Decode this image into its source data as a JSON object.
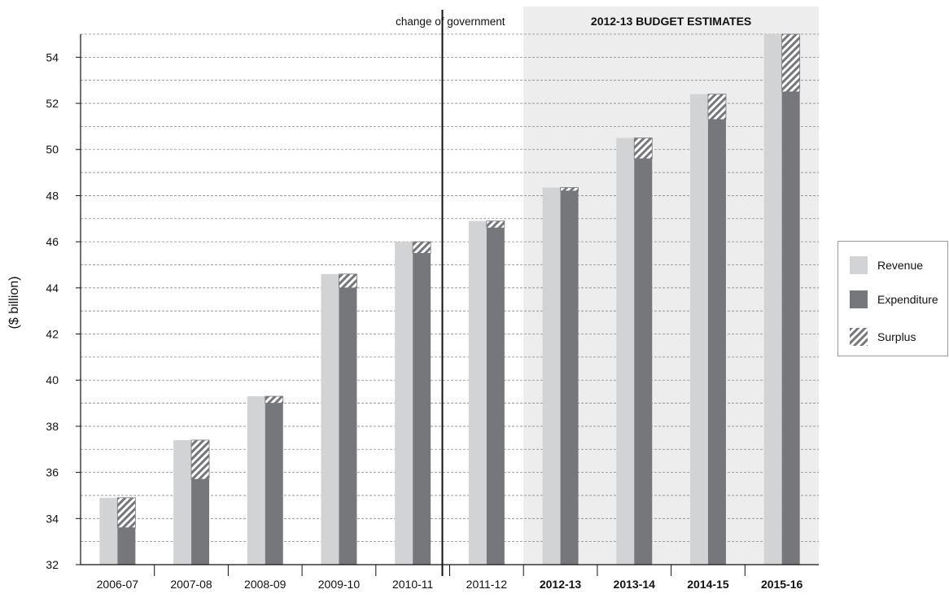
{
  "chart_data": {
    "type": "bar",
    "ylabel": "($ billion)",
    "ylim": [
      32,
      55
    ],
    "yticks": [
      32,
      34,
      36,
      38,
      40,
      42,
      44,
      46,
      48,
      50,
      52,
      54
    ],
    "grid": "dashed horizontal lines every 1",
    "categories": [
      "2006-07",
      "2007-08",
      "2008-09",
      "2009-10",
      "2010-11",
      "2011-12",
      "2012-13",
      "2013-14",
      "2014-15",
      "2015-16"
    ],
    "bold_categories": [
      "2012-13",
      "2013-14",
      "2014-15",
      "2015-16"
    ],
    "series": [
      {
        "name": "Revenue",
        "values": [
          34.9,
          37.4,
          39.3,
          44.6,
          46.0,
          46.9,
          48.35,
          50.5,
          52.4,
          55.0
        ]
      },
      {
        "name": "Expenditure",
        "values": [
          33.6,
          35.7,
          39.0,
          44.0,
          45.5,
          46.6,
          48.2,
          49.6,
          51.3,
          52.5
        ]
      },
      {
        "name": "Surplus",
        "values": [
          1.3,
          1.7,
          0.3,
          0.6,
          0.5,
          0.3,
          0.15,
          0.9,
          1.1,
          2.5
        ]
      }
    ],
    "annotations": {
      "change_label": "change of government",
      "estimates_title": "2012-13 BUDGET ESTIMATES"
    },
    "legend": {
      "position": "right",
      "items": [
        "Revenue",
        "Expenditure",
        "Surplus"
      ]
    },
    "colors": {
      "revenue": "#d2d3d5",
      "expenditure": "#76777b",
      "surplus": "#76777b",
      "estimates_bg": "#ededed"
    }
  }
}
